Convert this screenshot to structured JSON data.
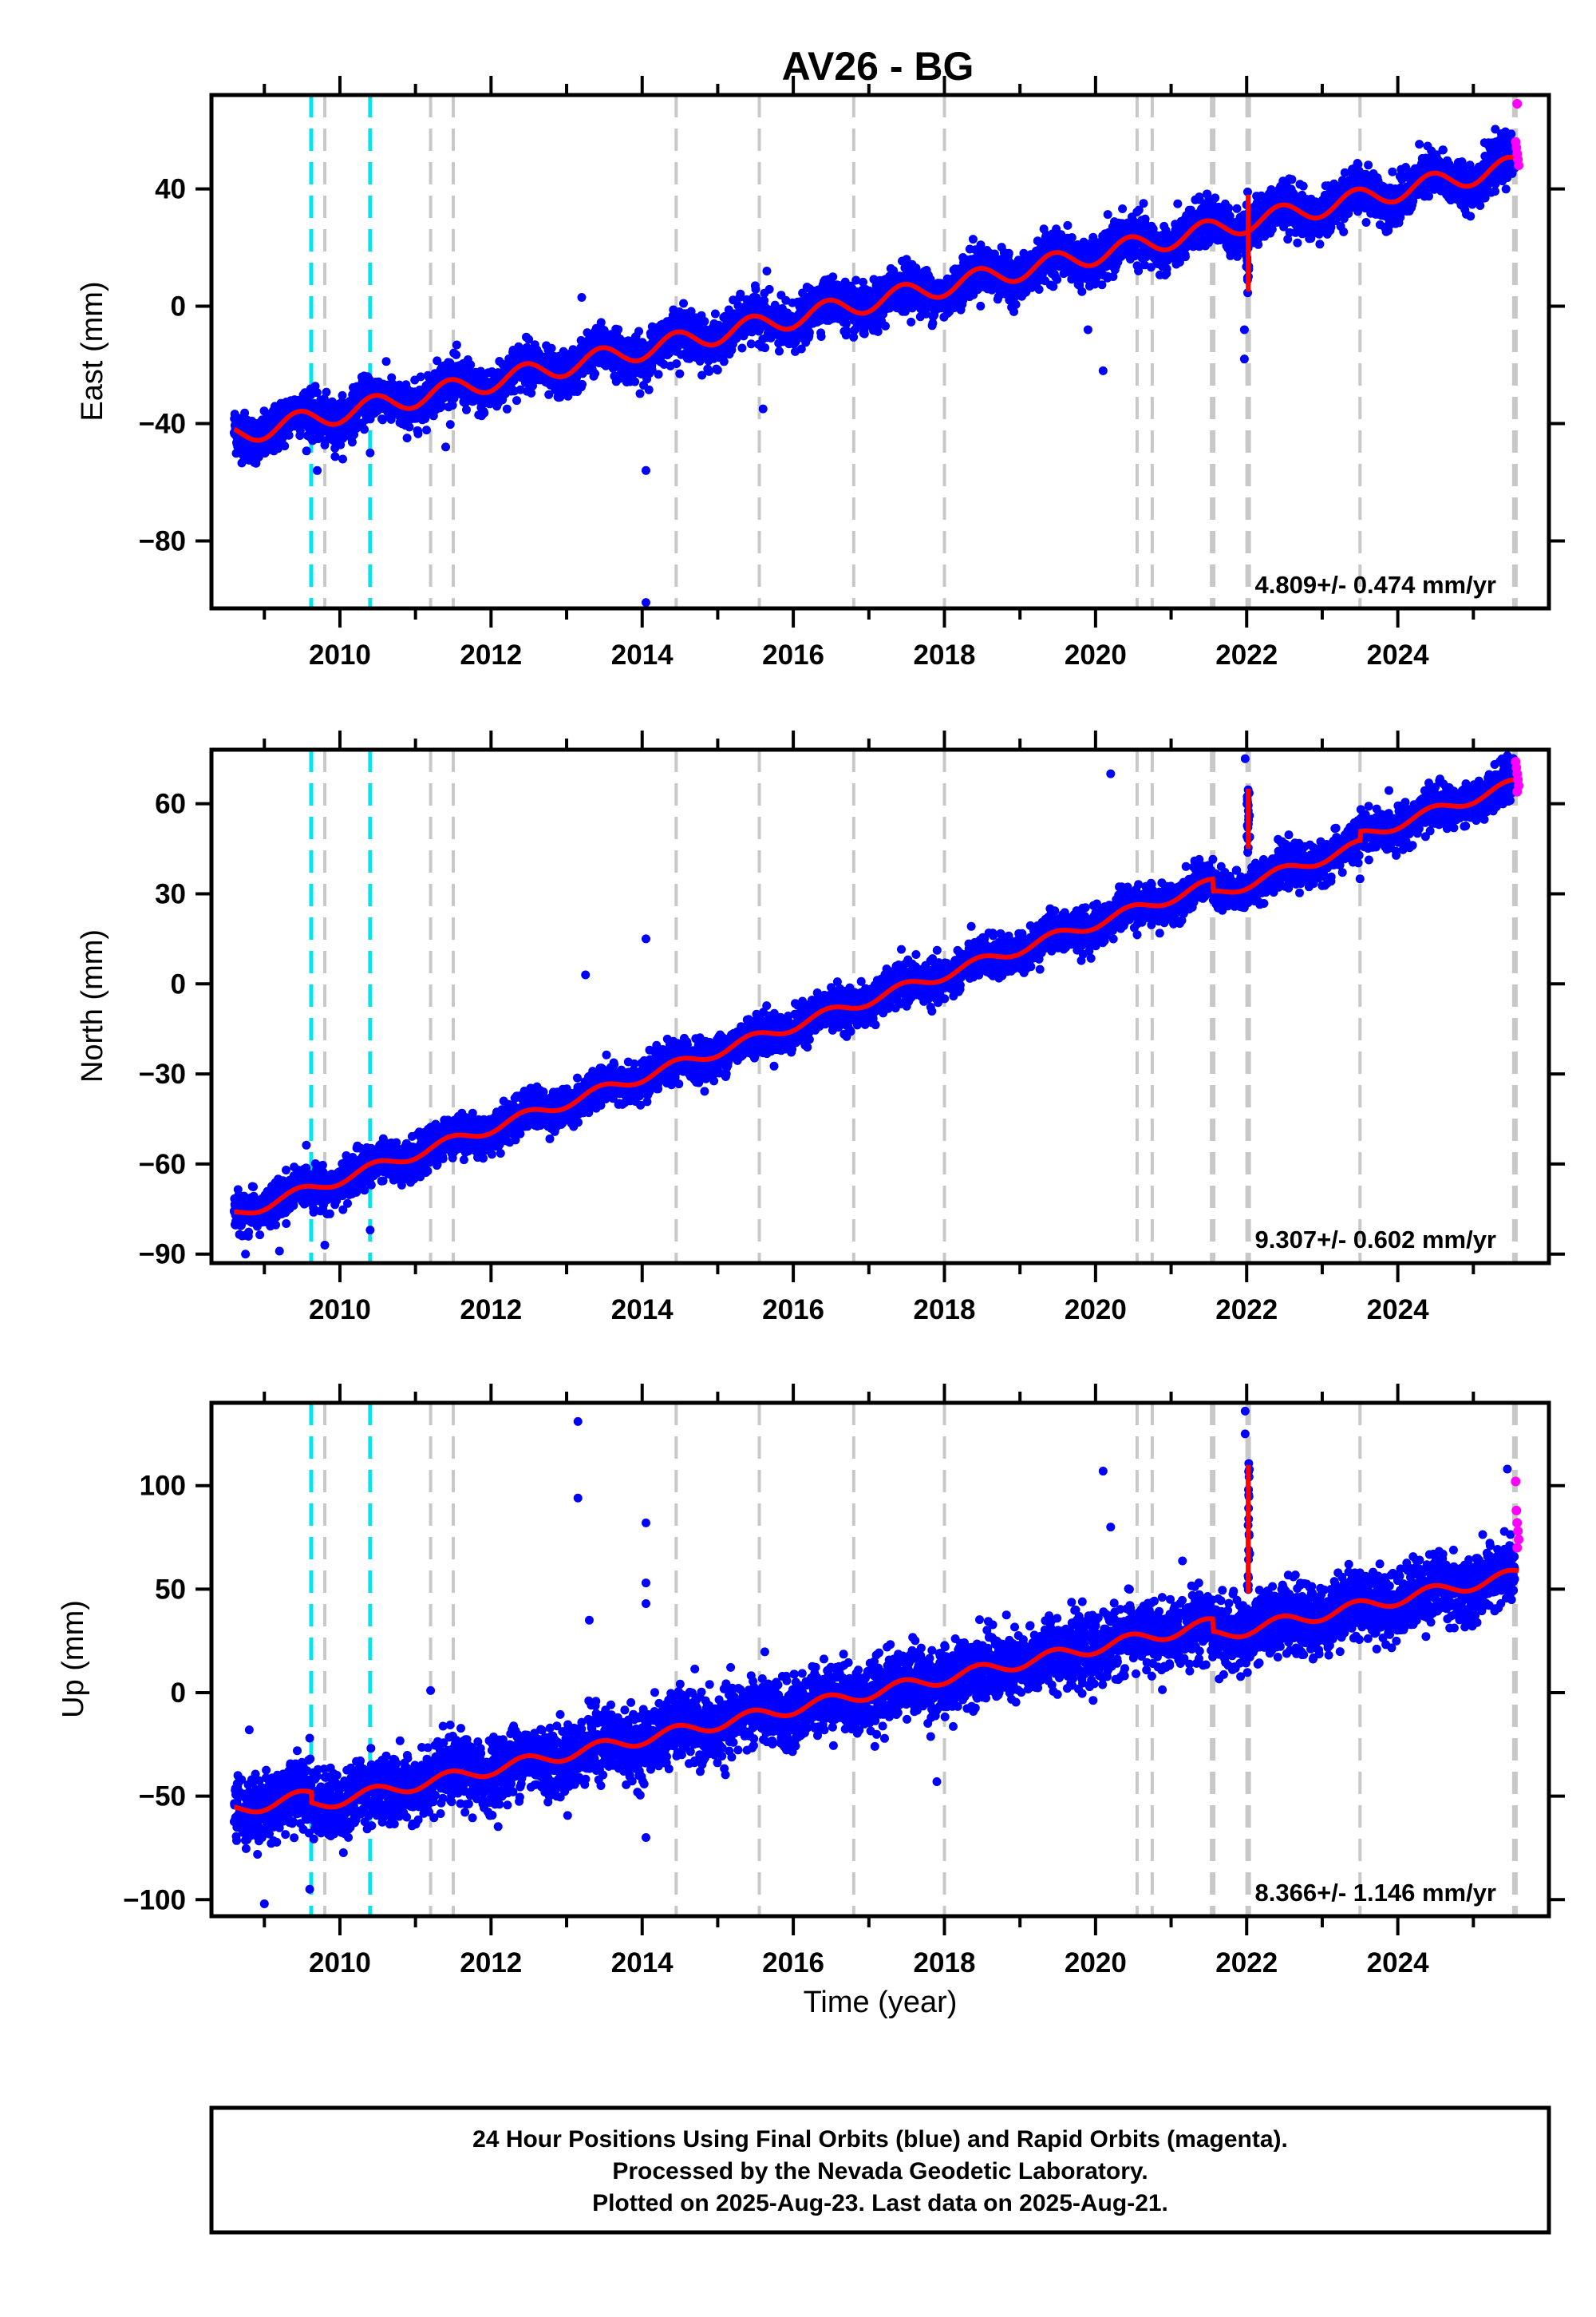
{
  "title": "AV26 - BG",
  "xlabel": "Time (year)",
  "footer": {
    "line1": "24 Hour Positions Using Final Orbits (blue) and Rapid Orbits (magenta).",
    "line2": "Processed by the Nevada Geodetic Laboratory.",
    "line3": "Plotted on 2025-Aug-23. Last data on 2025-Aug-21."
  },
  "colors": {
    "final_orbits": "#0000ff",
    "rapid_orbits": "#ff00ff",
    "model_fit": "#ff0000",
    "equipment_change": "#c8c8c8",
    "earthquake": "#00e5ee"
  },
  "chart_data": [
    {
      "type": "scatter",
      "component": "East",
      "ylabel": "East (mm)",
      "xlim": [
        2008.3,
        2026.0
      ],
      "ylim": [
        -103,
        72
      ],
      "xticks": [
        2010,
        2012,
        2014,
        2016,
        2018,
        2020,
        2022,
        2024
      ],
      "yticks": [
        -80,
        -40,
        0,
        40
      ],
      "rate": "4.809+/- 0.474 mm/yr",
      "start": -44,
      "end": 48,
      "annual_amp": 3.5,
      "scatter": 3.8,
      "steps": [],
      "spike": {
        "x": 2022.02,
        "y0": 38,
        "y1": 5
      },
      "outliers": [
        [
          2014.05,
          -101
        ],
        [
          2014.05,
          -56
        ],
        [
          2008.85,
          -52
        ],
        [
          2009.7,
          -56
        ],
        [
          2010.4,
          -50
        ],
        [
          2013.2,
          3
        ],
        [
          2015.6,
          -35
        ],
        [
          2020.1,
          -22
        ],
        [
          2019.9,
          -8
        ],
        [
          2021.65,
          30
        ],
        [
          2021.97,
          -18
        ],
        [
          2021.97,
          -8
        ],
        [
          2015.65,
          12
        ],
        [
          2011.4,
          -48
        ]
      ],
      "rapid": [
        [
          2025.58,
          69
        ],
        [
          2025.56,
          56
        ],
        [
          2025.57,
          54
        ],
        [
          2025.58,
          52
        ],
        [
          2025.59,
          50
        ],
        [
          2025.6,
          48
        ]
      ]
    },
    {
      "type": "scatter",
      "component": "North",
      "ylabel": "North (mm)",
      "xlim": [
        2008.3,
        2026.0
      ],
      "ylim": [
        -93,
        78
      ],
      "xticks": [
        2010,
        2012,
        2014,
        2016,
        2018,
        2020,
        2022,
        2024
      ],
      "yticks": [
        -90,
        -60,
        -30,
        0,
        30,
        60
      ],
      "rate": "9.307+/- 0.602 mm/yr",
      "start": -77,
      "end": 68,
      "annual_amp": 1.8,
      "scatter": 3.2,
      "steps": [
        [
          2021.55,
          -4
        ],
        [
          2023.5,
          3
        ]
      ],
      "spike": {
        "x": 2022.02,
        "y0": 45,
        "y1": 65
      },
      "outliers": [
        [
          2013.25,
          3
        ],
        [
          2014.05,
          15
        ],
        [
          2020.2,
          70
        ],
        [
          2021.98,
          75
        ],
        [
          2009.2,
          -89
        ],
        [
          2009.8,
          -87
        ],
        [
          2010.4,
          -82
        ],
        [
          2025.45,
          76
        ],
        [
          2023.5,
          35
        ],
        [
          2008.75,
          -90
        ]
      ],
      "rapid": [
        [
          2025.56,
          74
        ],
        [
          2025.57,
          72
        ],
        [
          2025.58,
          70
        ],
        [
          2025.59,
          68
        ],
        [
          2025.6,
          66
        ],
        [
          2025.58,
          64
        ]
      ]
    },
    {
      "type": "scatter",
      "component": "Up",
      "ylabel": "Up (mm)",
      "xlim": [
        2008.3,
        2026.0
      ],
      "ylim": [
        -108,
        140
      ],
      "xticks": [
        2010,
        2012,
        2014,
        2016,
        2018,
        2020,
        2022,
        2024
      ],
      "yticks": [
        -100,
        -50,
        0,
        50,
        100
      ],
      "rate": "8.366+/- 1.146 mm/yr",
      "start": -57,
      "end": 68,
      "annual_amp": 3.0,
      "scatter": 8.0,
      "steps": [
        [
          2009.62,
          -5
        ],
        [
          2021.55,
          -6
        ]
      ],
      "spike": {
        "x": 2022.02,
        "y0": 48,
        "y1": 110
      },
      "outliers": [
        [
          2013.15,
          131
        ],
        [
          2013.15,
          94
        ],
        [
          2014.05,
          82
        ],
        [
          2014.05,
          53
        ],
        [
          2014.05,
          43
        ],
        [
          2013.3,
          35
        ],
        [
          2020.1,
          107
        ],
        [
          2020.2,
          80
        ],
        [
          2021.98,
          136
        ],
        [
          2021.98,
          125
        ],
        [
          2025.45,
          108
        ],
        [
          2009.0,
          -102
        ],
        [
          2009.6,
          -95
        ],
        [
          2014.05,
          -70
        ],
        [
          2017.9,
          -43
        ],
        [
          2011.2,
          1
        ],
        [
          2009.6,
          -22
        ],
        [
          2008.8,
          -18
        ]
      ],
      "rapid": [
        [
          2025.56,
          102
        ],
        [
          2025.57,
          88
        ],
        [
          2025.58,
          82
        ],
        [
          2025.59,
          78
        ],
        [
          2025.6,
          74
        ],
        [
          2025.58,
          70
        ]
      ]
    }
  ],
  "events": {
    "equipment_change": [
      2009.8,
      2011.2,
      2011.5,
      2014.45,
      2015.55,
      2016.8,
      2018.0,
      2020.55,
      2020.75,
      2021.55,
      2022.02,
      2023.5,
      2025.55
    ],
    "earthquake": [
      2009.62,
      2010.4
    ]
  }
}
